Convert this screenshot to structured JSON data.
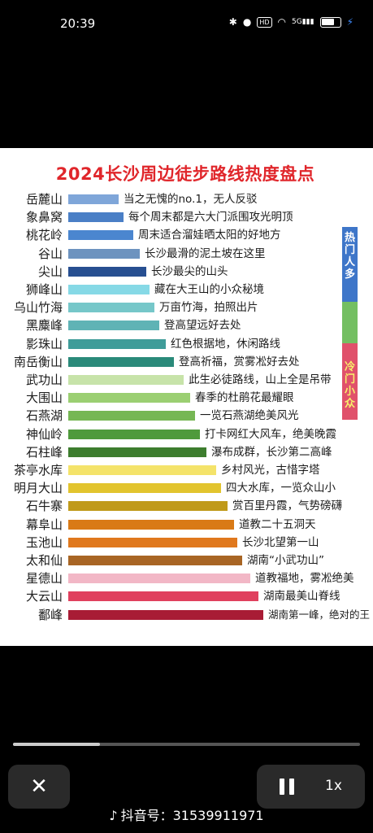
{
  "status_bar": {
    "time": "20:39",
    "icons": [
      "bluetooth-icon",
      "location-icon",
      "hd-icon",
      "wifi-icon",
      "signal-icon",
      "battery-icon",
      "charging-icon"
    ],
    "hd_label": "HD",
    "signal_label": "5G"
  },
  "infographic": {
    "title": "2024长沙周边徒步路线热度盘点",
    "legend": {
      "hot": "热门人多",
      "cold": "冷门小众"
    },
    "colors": {
      "title": "#e0262b",
      "hot": "#3e76c9",
      "mid": "#74bf62",
      "cold": "#e0516b"
    },
    "routes": [
      {
        "name": "岳麓山",
        "desc": "当之无愧的no.1，无人反驳",
        "color": "#7fa6d9",
        "bar_width": 62
      },
      {
        "name": "象鼻窝",
        "desc": "每个周末都是六大门派围攻光明顶",
        "color": "#4a7fc6",
        "bar_width": 68
      },
      {
        "name": "桃花岭",
        "desc": "周末适合溜娃晒太阳的好地方",
        "color": "#4b86cf",
        "bar_width": 80
      },
      {
        "name": "谷山",
        "desc": "长沙最滑的泥土坡在这里",
        "color": "#6d93bf",
        "bar_width": 88
      },
      {
        "name": "尖山",
        "desc": "长沙最尖的山头",
        "color": "#274f91",
        "bar_width": 96
      },
      {
        "name": "狮峰山",
        "desc": "藏在大王山的小众秘境",
        "color": "#86d9e6",
        "bar_width": 100
      },
      {
        "name": "乌山竹海",
        "desc": "万亩竹海，拍照出片",
        "color": "#76c7c9",
        "bar_width": 106
      },
      {
        "name": "黑麋峰",
        "desc": "登高望远好去处",
        "color": "#5fb3b5",
        "bar_width": 112
      },
      {
        "name": "影珠山",
        "desc": "红色根据地，休闲路线",
        "color": "#3f9c99",
        "bar_width": 120
      },
      {
        "name": "南岳衡山",
        "desc": "登高祈福，赏雾凇好去处",
        "color": "#2a8a7a",
        "bar_width": 130
      },
      {
        "name": "武功山",
        "desc": "此生必徒路线，山上全是吊带",
        "color": "#c7e3a9",
        "bar_width": 142
      },
      {
        "name": "大围山",
        "desc": "春季的杜鹃花最耀眼",
        "color": "#9bcf72",
        "bar_width": 150
      },
      {
        "name": "石燕湖",
        "desc": "一览石燕湖绝美风光",
        "color": "#76b754",
        "bar_width": 156
      },
      {
        "name": "神仙岭",
        "desc": "打卡网红大风车，绝美晚霞",
        "color": "#4f9a3c",
        "bar_width": 162
      },
      {
        "name": "石柱峰",
        "desc": "瀑布成群，长沙第二高峰",
        "color": "#3d7d2e",
        "bar_width": 170
      },
      {
        "name": "茶亭水库",
        "desc": "乡村风光，古惜字塔",
        "color": "#f4e36a",
        "bar_width": 182
      },
      {
        "name": "明月大山",
        "desc": "四大水库，一览众山小",
        "color": "#e2c42e",
        "bar_width": 188
      },
      {
        "name": "石牛寨",
        "desc": "赏百里丹霞，气势磅礴",
        "color": "#c09a1a",
        "bar_width": 196
      },
      {
        "name": "幕阜山",
        "desc": "道教二十五洞天",
        "color": "#d97a16",
        "bar_width": 204
      },
      {
        "name": "玉池山",
        "desc": "长沙北望第一山",
        "color": "#e0781d",
        "bar_width": 208
      },
      {
        "name": "太和仙",
        "desc": "湖南“小武功山”",
        "color": "#a86524",
        "bar_width": 214
      },
      {
        "name": "星德山",
        "desc": "道教福地，雾凇绝美",
        "color": "#f2b7c6",
        "bar_width": 224
      },
      {
        "name": "大云山",
        "desc": "湖南最美山脊线",
        "color": "#e0405e",
        "bar_width": 234
      },
      {
        "name": "鄱峰",
        "desc": "湖南第一峰，绝对的王",
        "color": "#a81c35",
        "bar_width": 240
      }
    ]
  },
  "player": {
    "progress": 0.25,
    "speed_label": "1x",
    "watermark_label": "抖音号：",
    "watermark_id": "31539911971"
  }
}
